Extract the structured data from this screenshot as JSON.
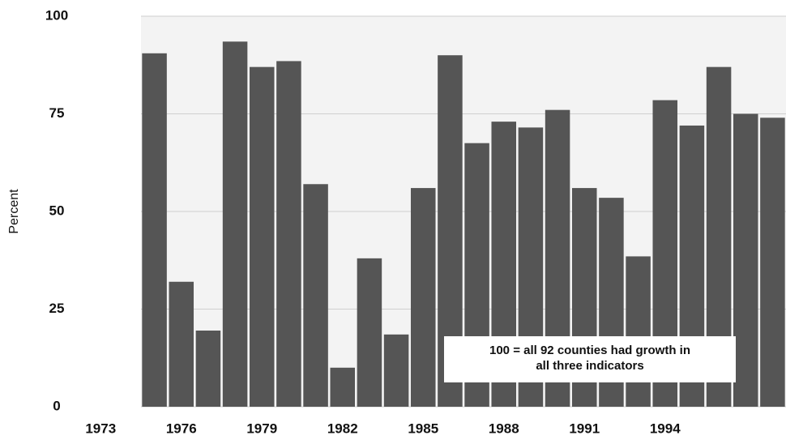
{
  "chart_data": {
    "type": "bar",
    "x": [
      1975,
      1976,
      1977,
      1978,
      1979,
      1980,
      1981,
      1982,
      1983,
      1984,
      1985,
      1986,
      1987,
      1988,
      1989,
      1990,
      1991,
      1992,
      1993,
      1994,
      1995,
      1996,
      1997,
      1998
    ],
    "values": [
      90.5,
      32,
      19.5,
      93.5,
      87,
      88.5,
      57,
      10,
      38,
      18.5,
      56,
      90,
      67.5,
      73,
      71.5,
      76,
      56,
      53.5,
      38.5,
      78.5,
      72,
      87,
      75,
      74
    ],
    "color": "#555555",
    "y_label": "Percent",
    "xlim": [
      1974.5,
      1998.5
    ],
    "xticks": [
      1973,
      1976,
      1979,
      1982,
      1985,
      1988,
      1991,
      1994
    ],
    "ylim": [
      0,
      100
    ],
    "yticks": [
      0,
      25,
      50,
      75,
      100
    ],
    "grid": true,
    "annotation": [
      "100 = all 92 counties had growth in",
      "all three indicators"
    ]
  }
}
